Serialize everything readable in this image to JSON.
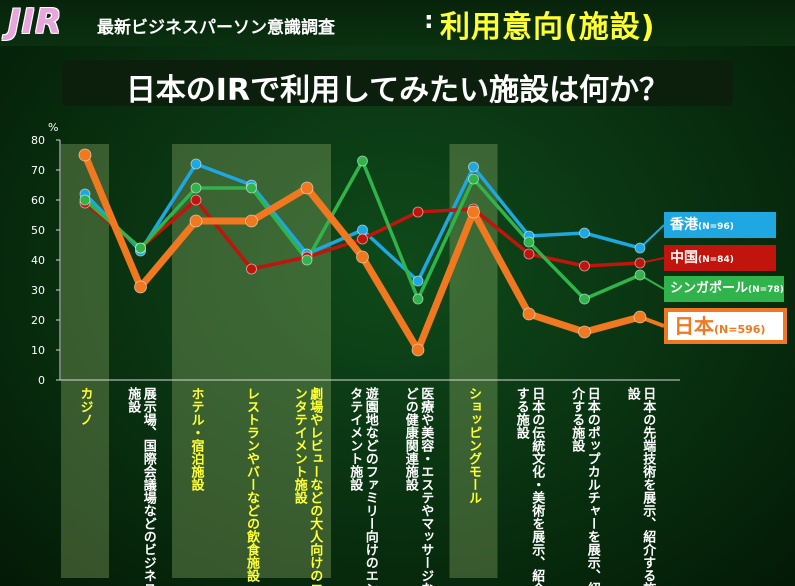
{
  "header": {
    "logo": "JIR",
    "survey_title": "最新ビジネスパーソン意識調査",
    "colon": ":",
    "topic": "利用意向(施設)"
  },
  "subtitle": "日本のIRで利用してみたい施設は何か？",
  "chart_data": {
    "type": "line",
    "unit_label": "%",
    "ylim": [
      0,
      80
    ],
    "yticks": [
      0,
      10,
      20,
      30,
      40,
      50,
      60,
      70,
      80
    ],
    "categories": [
      "カジノ",
      "展示場、国際会議場などのビジネス施設",
      "ホテル・宿泊施設",
      "レストランやバーなどの飲食施設",
      "劇場やレビューなどの大人向けのエンタテイメント施設",
      "遊園地などのファミリー向けのエンタテイメント施設",
      "医療や美容・エステやマッサージなどの健康関連施設",
      "ショッピングモール",
      "日本の伝統文化・美術を展示、紹介する施設",
      "日本のポップカルチャーを展示、紹介する施設",
      "日本の先端技術を展示、紹介する施設"
    ],
    "highlighted_categories": [
      0,
      2,
      3,
      4,
      7
    ],
    "series": [
      {
        "name": "香港",
        "n_label": "(N=96)",
        "color": "#1ea7e1",
        "values": [
          62,
          43,
          72,
          65,
          42,
          50,
          33,
          71,
          48,
          49,
          44
        ]
      },
      {
        "name": "中国",
        "n_label": "(N=84)",
        "color": "#c0140c",
        "values": [
          59,
          44,
          60,
          37,
          41,
          47,
          56,
          57,
          42,
          38,
          39
        ]
      },
      {
        "name": "シンガポール",
        "n_label": "(N=78)",
        "color": "#2fb34a",
        "values": [
          60,
          44,
          64,
          64,
          40,
          73,
          27,
          67,
          46,
          27,
          35
        ]
      },
      {
        "name": "日本",
        "n_label": "(N=596)",
        "color": "#f07820",
        "values": [
          75,
          31,
          53,
          53,
          64,
          41,
          10,
          56,
          22,
          16,
          21
        ]
      }
    ]
  }
}
